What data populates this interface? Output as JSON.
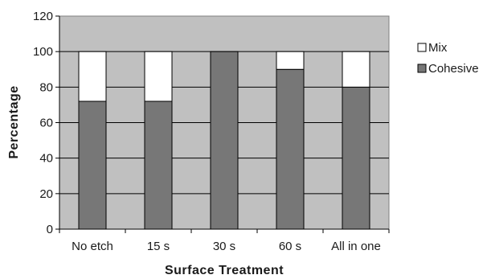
{
  "chart_data": {
    "type": "bar",
    "stacked": true,
    "title": "",
    "xlabel": "Surface Treatment",
    "ylabel": "Percentage",
    "categories": [
      "No etch",
      "15 s",
      "30 s",
      "60 s",
      "All in one"
    ],
    "series": [
      {
        "name": "Cohesive",
        "values": [
          72,
          72,
          100,
          90,
          80
        ],
        "color": "#777777"
      },
      {
        "name": "Mix",
        "values": [
          28,
          28,
          0,
          10,
          20
        ],
        "color": "#ffffff"
      }
    ],
    "ylim": [
      0,
      120
    ],
    "yticks": [
      0,
      20,
      40,
      60,
      80,
      100,
      120
    ],
    "grid": true,
    "legend_placement": "right",
    "legend_order": [
      "Mix",
      "Cohesive"
    ],
    "plot_background": "#c0c0c0"
  }
}
